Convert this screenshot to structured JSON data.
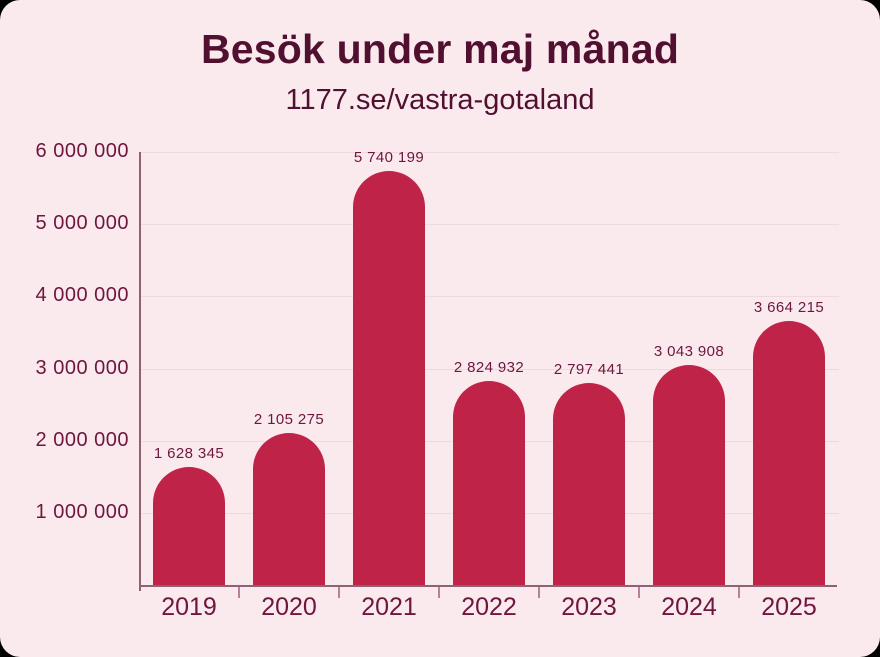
{
  "chart_data": {
    "type": "bar",
    "title": "Besök under maj månad",
    "subtitle": "1177.se/vastra-gotaland",
    "categories": [
      "2019",
      "2020",
      "2021",
      "2022",
      "2023",
      "2024",
      "2025"
    ],
    "values": [
      1628345,
      2105275,
      5740199,
      2824932,
      2797441,
      3043908,
      3664215
    ],
    "value_labels": [
      "1 628 345",
      "2 105 275",
      "5 740 199",
      "2 824 932",
      "2 797 441",
      "3 043 908",
      "3 664 215"
    ],
    "xlabel": "",
    "ylabel": "",
    "ylim": [
      0,
      6000000
    ],
    "y_ticks": [
      1000000,
      2000000,
      3000000,
      4000000,
      5000000,
      6000000
    ],
    "y_tick_labels": [
      "1 000 000",
      "2 000 000",
      "3 000 000",
      "4 000 000",
      "5 000 000",
      "6 000 000"
    ],
    "grid": true,
    "legend": "none",
    "colors": {
      "bar": "#c02348",
      "background": "#faeaee",
      "title": "#521030",
      "label": "#6e163d",
      "gridline": "#f0d9de",
      "axis": "#8e6274",
      "tick": "#b28495"
    }
  }
}
